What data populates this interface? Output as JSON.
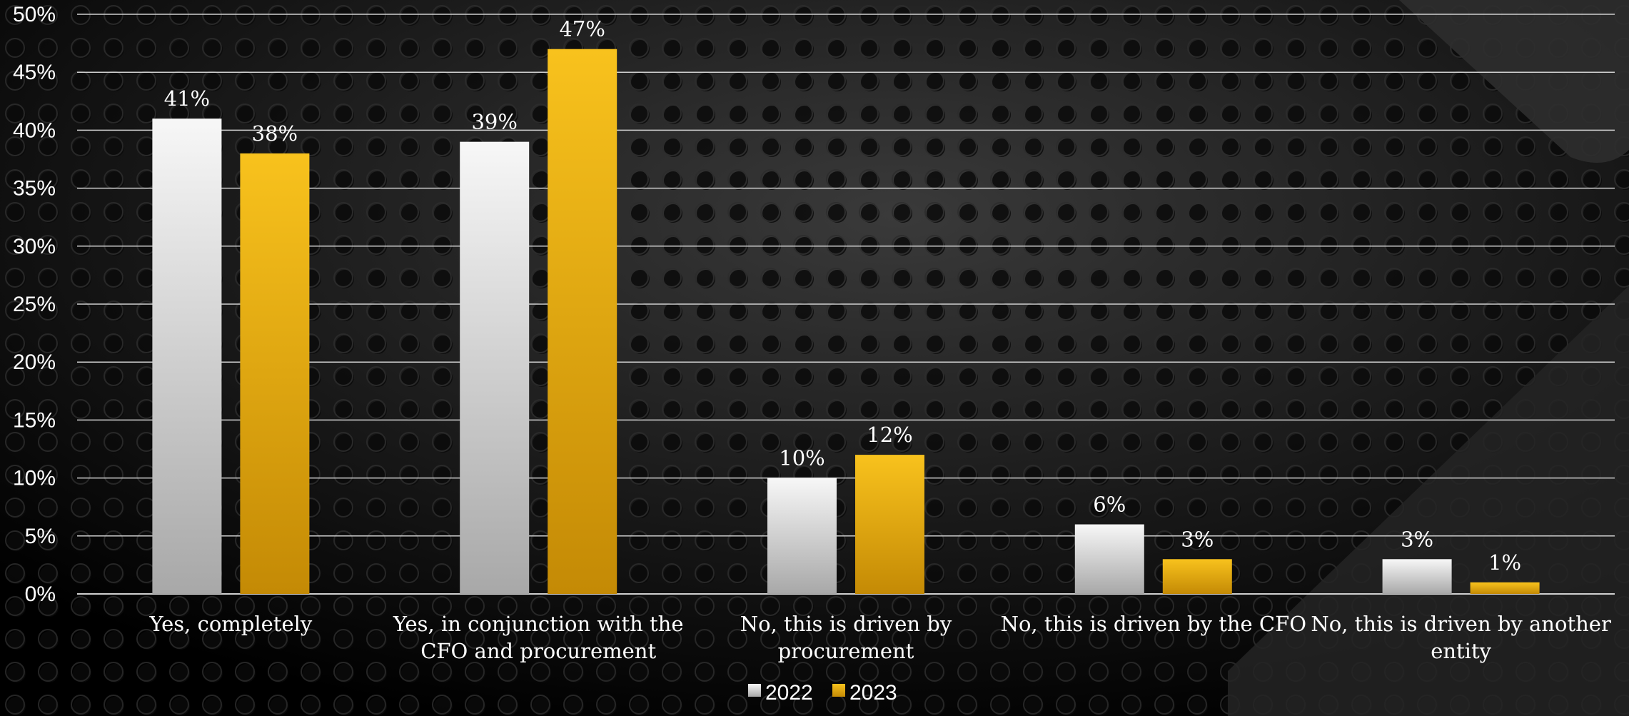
{
  "chart_data": {
    "type": "bar",
    "categories": [
      [
        "Yes, completely"
      ],
      [
        "Yes, in conjunction with the",
        "CFO and procurement"
      ],
      [
        "No, this is driven by",
        "procurement"
      ],
      [
        "No, this is driven by the CFO"
      ],
      [
        "No, this is driven by another",
        "entity"
      ]
    ],
    "series": [
      {
        "name": "2022",
        "values": [
          41,
          39,
          10,
          6,
          3
        ]
      },
      {
        "name": "2023",
        "values": [
          38,
          47,
          12,
          3,
          1
        ]
      }
    ],
    "data_labels": [
      [
        "41%",
        "39%",
        "10%",
        "6%",
        "3%"
      ],
      [
        "38%",
        "47%",
        "12%",
        "3%",
        "1%"
      ]
    ],
    "y_ticks": [
      "0%",
      "5%",
      "10%",
      "15%",
      "20%",
      "25%",
      "30%",
      "35%",
      "40%",
      "45%",
      "50%"
    ],
    "ylim": [
      0,
      50
    ],
    "title": "",
    "xlabel": "",
    "ylabel": "",
    "grid": true,
    "legend_position": "bottom",
    "colors": {
      "2022": "#d9d9d9",
      "2023": "#e8a412",
      "gridline": "#d0d0d0",
      "background": "#050505",
      "text": "#ffffff"
    }
  }
}
